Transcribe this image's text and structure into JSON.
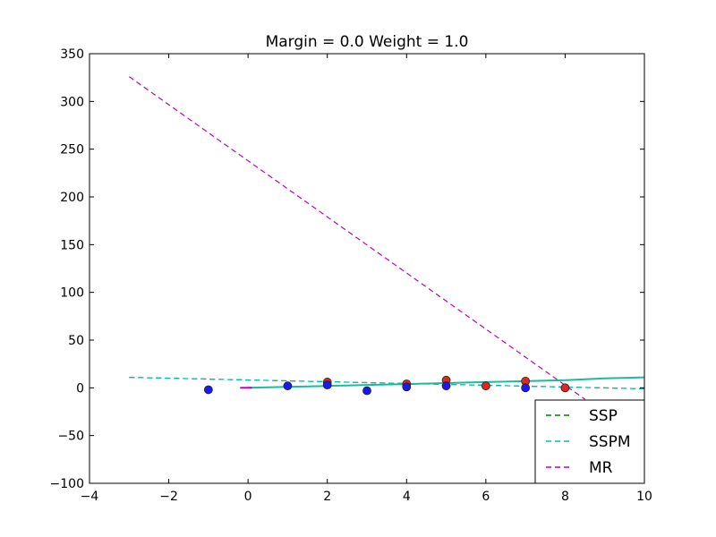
{
  "chart_data": {
    "type": "line",
    "title": "Margin = 0.0 Weight = 1.0",
    "xlabel": "",
    "ylabel": "",
    "xlim": [
      -4,
      10
    ],
    "ylim": [
      -100,
      350
    ],
    "x_ticks": [
      -4,
      -2,
      0,
      2,
      4,
      6,
      8,
      10
    ],
    "y_ticks": [
      -100,
      -50,
      0,
      50,
      100,
      150,
      200,
      250,
      300,
      350
    ],
    "grid": false,
    "legend_position": "lower-right",
    "series": [
      {
        "name": "SSP",
        "style": "dashed",
        "color": "#008000",
        "x": [
          -3,
          10
        ],
        "y": [
          11,
          -1
        ]
      },
      {
        "name": "SSPM",
        "style": "dashed",
        "color": "#00bfbf",
        "x": [
          -3,
          10
        ],
        "y": [
          11,
          -1
        ]
      },
      {
        "name": "MR",
        "style": "dashed",
        "color": "#bf00bf",
        "x": [
          -3,
          8.5
        ],
        "y": [
          326,
          -12
        ]
      },
      {
        "name": "",
        "style": "solid",
        "color": "#1abc9c",
        "x": [
          0,
          1,
          2,
          3,
          4,
          5,
          6,
          7,
          8,
          9,
          10
        ],
        "y": [
          0,
          1,
          2,
          3,
          4,
          5,
          6,
          7,
          8,
          10,
          11
        ]
      },
      {
        "name": "",
        "style": "solid",
        "color": "#bf00bf",
        "x": [
          -0.2,
          0.1
        ],
        "y": [
          0,
          0
        ]
      }
    ],
    "points_red": [
      {
        "x": 2,
        "y": 6
      },
      {
        "x": 4,
        "y": 4
      },
      {
        "x": 5,
        "y": 8
      },
      {
        "x": 6,
        "y": 2
      },
      {
        "x": 7,
        "y": 7
      },
      {
        "x": 8,
        "y": 0
      }
    ],
    "points_blue": [
      {
        "x": -1,
        "y": -2
      },
      {
        "x": 1,
        "y": 2
      },
      {
        "x": 2,
        "y": 3
      },
      {
        "x": 3,
        "y": -3
      },
      {
        "x": 4,
        "y": 1
      },
      {
        "x": 5,
        "y": 2
      },
      {
        "x": 7,
        "y": 0
      }
    ],
    "legend": [
      {
        "label": "SSP",
        "color": "#008000"
      },
      {
        "label": "SSPM",
        "color": "#00bfbf"
      },
      {
        "label": "MR",
        "color": "#bf00bf"
      }
    ]
  }
}
